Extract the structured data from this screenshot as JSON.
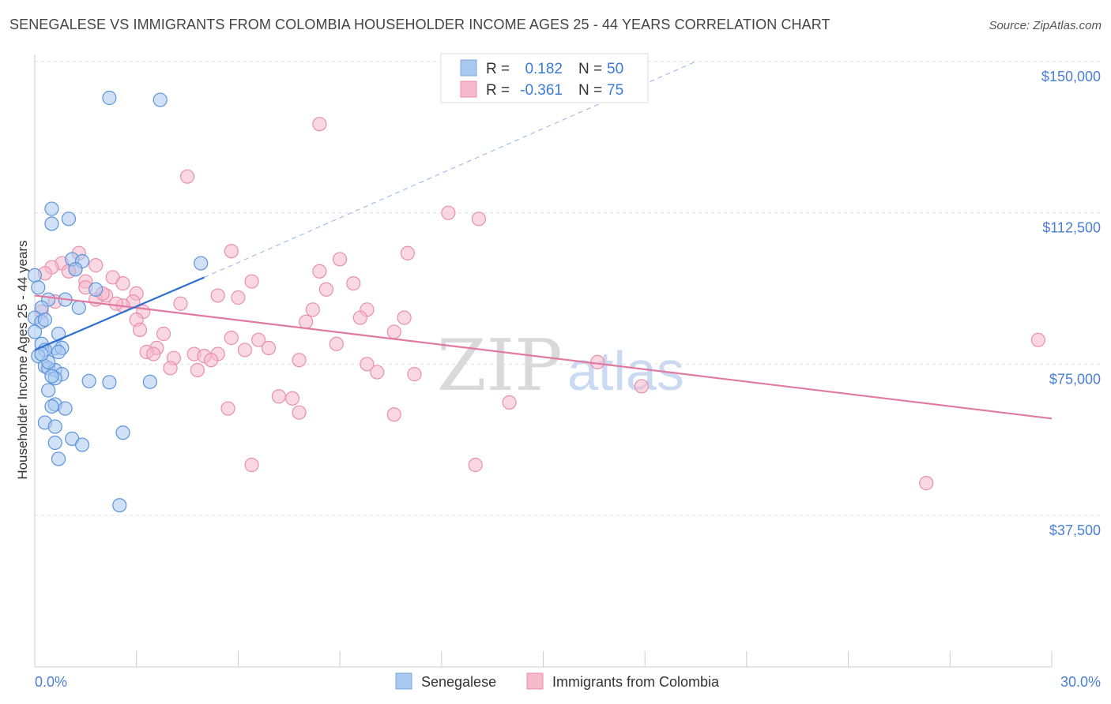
{
  "header": {
    "title": "SENEGALESE VS IMMIGRANTS FROM COLOMBIA HOUSEHOLDER INCOME AGES 25 - 44 YEARS CORRELATION CHART",
    "source": "Source: ZipAtlas.com"
  },
  "watermark": {
    "zip": "ZIP",
    "atlas": "atlas"
  },
  "legend_top": {
    "rows": [
      {
        "r_label": "R =",
        "r_value": "0.182",
        "n_label": "N =",
        "n_value": "50",
        "color": "#a9c8f0"
      },
      {
        "r_label": "R =",
        "r_value": "-0.361",
        "n_label": "N =",
        "n_value": "75",
        "color": "#f6b8cb"
      }
    ]
  },
  "legend_bottom": {
    "items": [
      {
        "label": "Senegalese",
        "color": "#a9c8f0"
      },
      {
        "label": "Immigrants from Colombia",
        "color": "#f6b8cb"
      }
    ]
  },
  "chart_data": {
    "type": "scatter",
    "title": "SENEGALESE VS IMMIGRANTS FROM COLOMBIA HOUSEHOLDER INCOME AGES 25 - 44 YEARS CORRELATION CHART",
    "xlabel": "",
    "ylabel": "Householder Income Ages 25 - 44 years",
    "xlim": [
      0,
      30
    ],
    "ylim": [
      0,
      153000
    ],
    "x_tick_labels": [
      "0.0%",
      "30.0%"
    ],
    "y_ticks": [
      37500,
      75000,
      112500,
      150000
    ],
    "y_tick_labels": [
      "$37,500",
      "$75,000",
      "$112,500",
      "$150,000"
    ],
    "grid": true,
    "legend_position": "top-center",
    "colors": {
      "senegalese": "#4a86d8",
      "colombia": "#e07aa0",
      "senegalese_fill": "#a9c8f0",
      "colombia_fill": "#f6b8cb"
    },
    "series": [
      {
        "name": "Senegalese",
        "points": [
          [
            2.2,
            141000
          ],
          [
            3.7,
            140500
          ],
          [
            0.5,
            113500
          ],
          [
            1.0,
            111000
          ],
          [
            0.5,
            109800
          ],
          [
            1.1,
            101000
          ],
          [
            1.4,
            100500
          ],
          [
            4.9,
            100000
          ],
          [
            1.2,
            98500
          ],
          [
            0.0,
            97000
          ],
          [
            0.1,
            94000
          ],
          [
            0.4,
            91000
          ],
          [
            0.9,
            91000
          ],
          [
            0.2,
            89000
          ],
          [
            0.0,
            86500
          ],
          [
            0.2,
            85500
          ],
          [
            0.0,
            83000
          ],
          [
            0.7,
            82500
          ],
          [
            0.2,
            80000
          ],
          [
            0.6,
            79000
          ],
          [
            0.8,
            79000
          ],
          [
            0.3,
            78500
          ],
          [
            0.7,
            78000
          ],
          [
            0.1,
            77000
          ],
          [
            0.3,
            74500
          ],
          [
            0.4,
            74000
          ],
          [
            0.6,
            73500
          ],
          [
            0.8,
            72500
          ],
          [
            0.6,
            71500
          ],
          [
            1.6,
            70800
          ],
          [
            2.2,
            70500
          ],
          [
            3.4,
            70600
          ],
          [
            0.4,
            68500
          ],
          [
            0.6,
            65000
          ],
          [
            0.5,
            64500
          ],
          [
            0.9,
            64000
          ],
          [
            0.3,
            60500
          ],
          [
            0.6,
            59500
          ],
          [
            2.6,
            58000
          ],
          [
            1.1,
            56500
          ],
          [
            0.6,
            55500
          ],
          [
            1.4,
            55000
          ],
          [
            0.7,
            51500
          ],
          [
            2.5,
            40000
          ],
          [
            1.8,
            93500
          ],
          [
            1.3,
            89000
          ],
          [
            0.4,
            75500
          ],
          [
            0.2,
            77500
          ],
          [
            0.5,
            72000
          ],
          [
            0.3,
            86000
          ]
        ],
        "trend": {
          "x": [
            0,
            5.0
          ],
          "y": [
            78500,
            96500
          ],
          "extended": {
            "x": [
              5.0,
              19.5
            ],
            "y": [
              96500,
              150000
            ]
          }
        }
      },
      {
        "name": "Immigrants from Colombia",
        "points": [
          [
            8.4,
            134500
          ],
          [
            4.5,
            121500
          ],
          [
            12.2,
            112500
          ],
          [
            13.1,
            111000
          ],
          [
            5.8,
            103000
          ],
          [
            11.0,
            102500
          ],
          [
            1.3,
            102500
          ],
          [
            9.0,
            101000
          ],
          [
            0.8,
            100000
          ],
          [
            1.8,
            99500
          ],
          [
            0.5,
            99000
          ],
          [
            1.2,
            98500
          ],
          [
            8.4,
            98000
          ],
          [
            0.3,
            97500
          ],
          [
            2.3,
            96500
          ],
          [
            6.4,
            95500
          ],
          [
            1.5,
            95500
          ],
          [
            2.6,
            95000
          ],
          [
            9.4,
            95000
          ],
          [
            8.6,
            93500
          ],
          [
            3.0,
            92500
          ],
          [
            2.1,
            92000
          ],
          [
            5.4,
            92000
          ],
          [
            6.0,
            91500
          ],
          [
            1.8,
            91000
          ],
          [
            2.9,
            90500
          ],
          [
            4.3,
            90000
          ],
          [
            2.6,
            89500
          ],
          [
            8.2,
            88500
          ],
          [
            9.8,
            88500
          ],
          [
            3.2,
            88000
          ],
          [
            10.9,
            86500
          ],
          [
            9.6,
            86500
          ],
          [
            3.0,
            86000
          ],
          [
            8.0,
            85500
          ],
          [
            3.1,
            83500
          ],
          [
            10.6,
            83000
          ],
          [
            3.8,
            82500
          ],
          [
            5.8,
            81500
          ],
          [
            6.6,
            81000
          ],
          [
            29.6,
            81000
          ],
          [
            8.9,
            80000
          ],
          [
            3.6,
            79000
          ],
          [
            6.9,
            79000
          ],
          [
            6.2,
            78500
          ],
          [
            3.3,
            78000
          ],
          [
            4.7,
            77500
          ],
          [
            5.4,
            77500
          ],
          [
            3.5,
            77500
          ],
          [
            5.0,
            77000
          ],
          [
            4.1,
            76500
          ],
          [
            5.2,
            76000
          ],
          [
            7.8,
            76000
          ],
          [
            16.6,
            75500
          ],
          [
            9.8,
            75000
          ],
          [
            4.0,
            74000
          ],
          [
            4.8,
            73500
          ],
          [
            10.1,
            73000
          ],
          [
            11.2,
            72500
          ],
          [
            17.9,
            69500
          ],
          [
            7.2,
            67000
          ],
          [
            7.6,
            66500
          ],
          [
            14.0,
            65500
          ],
          [
            5.7,
            64000
          ],
          [
            7.8,
            63000
          ],
          [
            10.6,
            62500
          ],
          [
            6.4,
            50000
          ],
          [
            13.0,
            50000
          ],
          [
            26.3,
            45500
          ],
          [
            1.0,
            98000
          ],
          [
            0.6,
            90500
          ],
          [
            1.5,
            94000
          ],
          [
            2.0,
            92500
          ],
          [
            2.4,
            90000
          ],
          [
            0.2,
            88000
          ]
        ],
        "trend": {
          "x": [
            0,
            30
          ],
          "y": [
            92000,
            61500
          ]
        }
      }
    ]
  }
}
